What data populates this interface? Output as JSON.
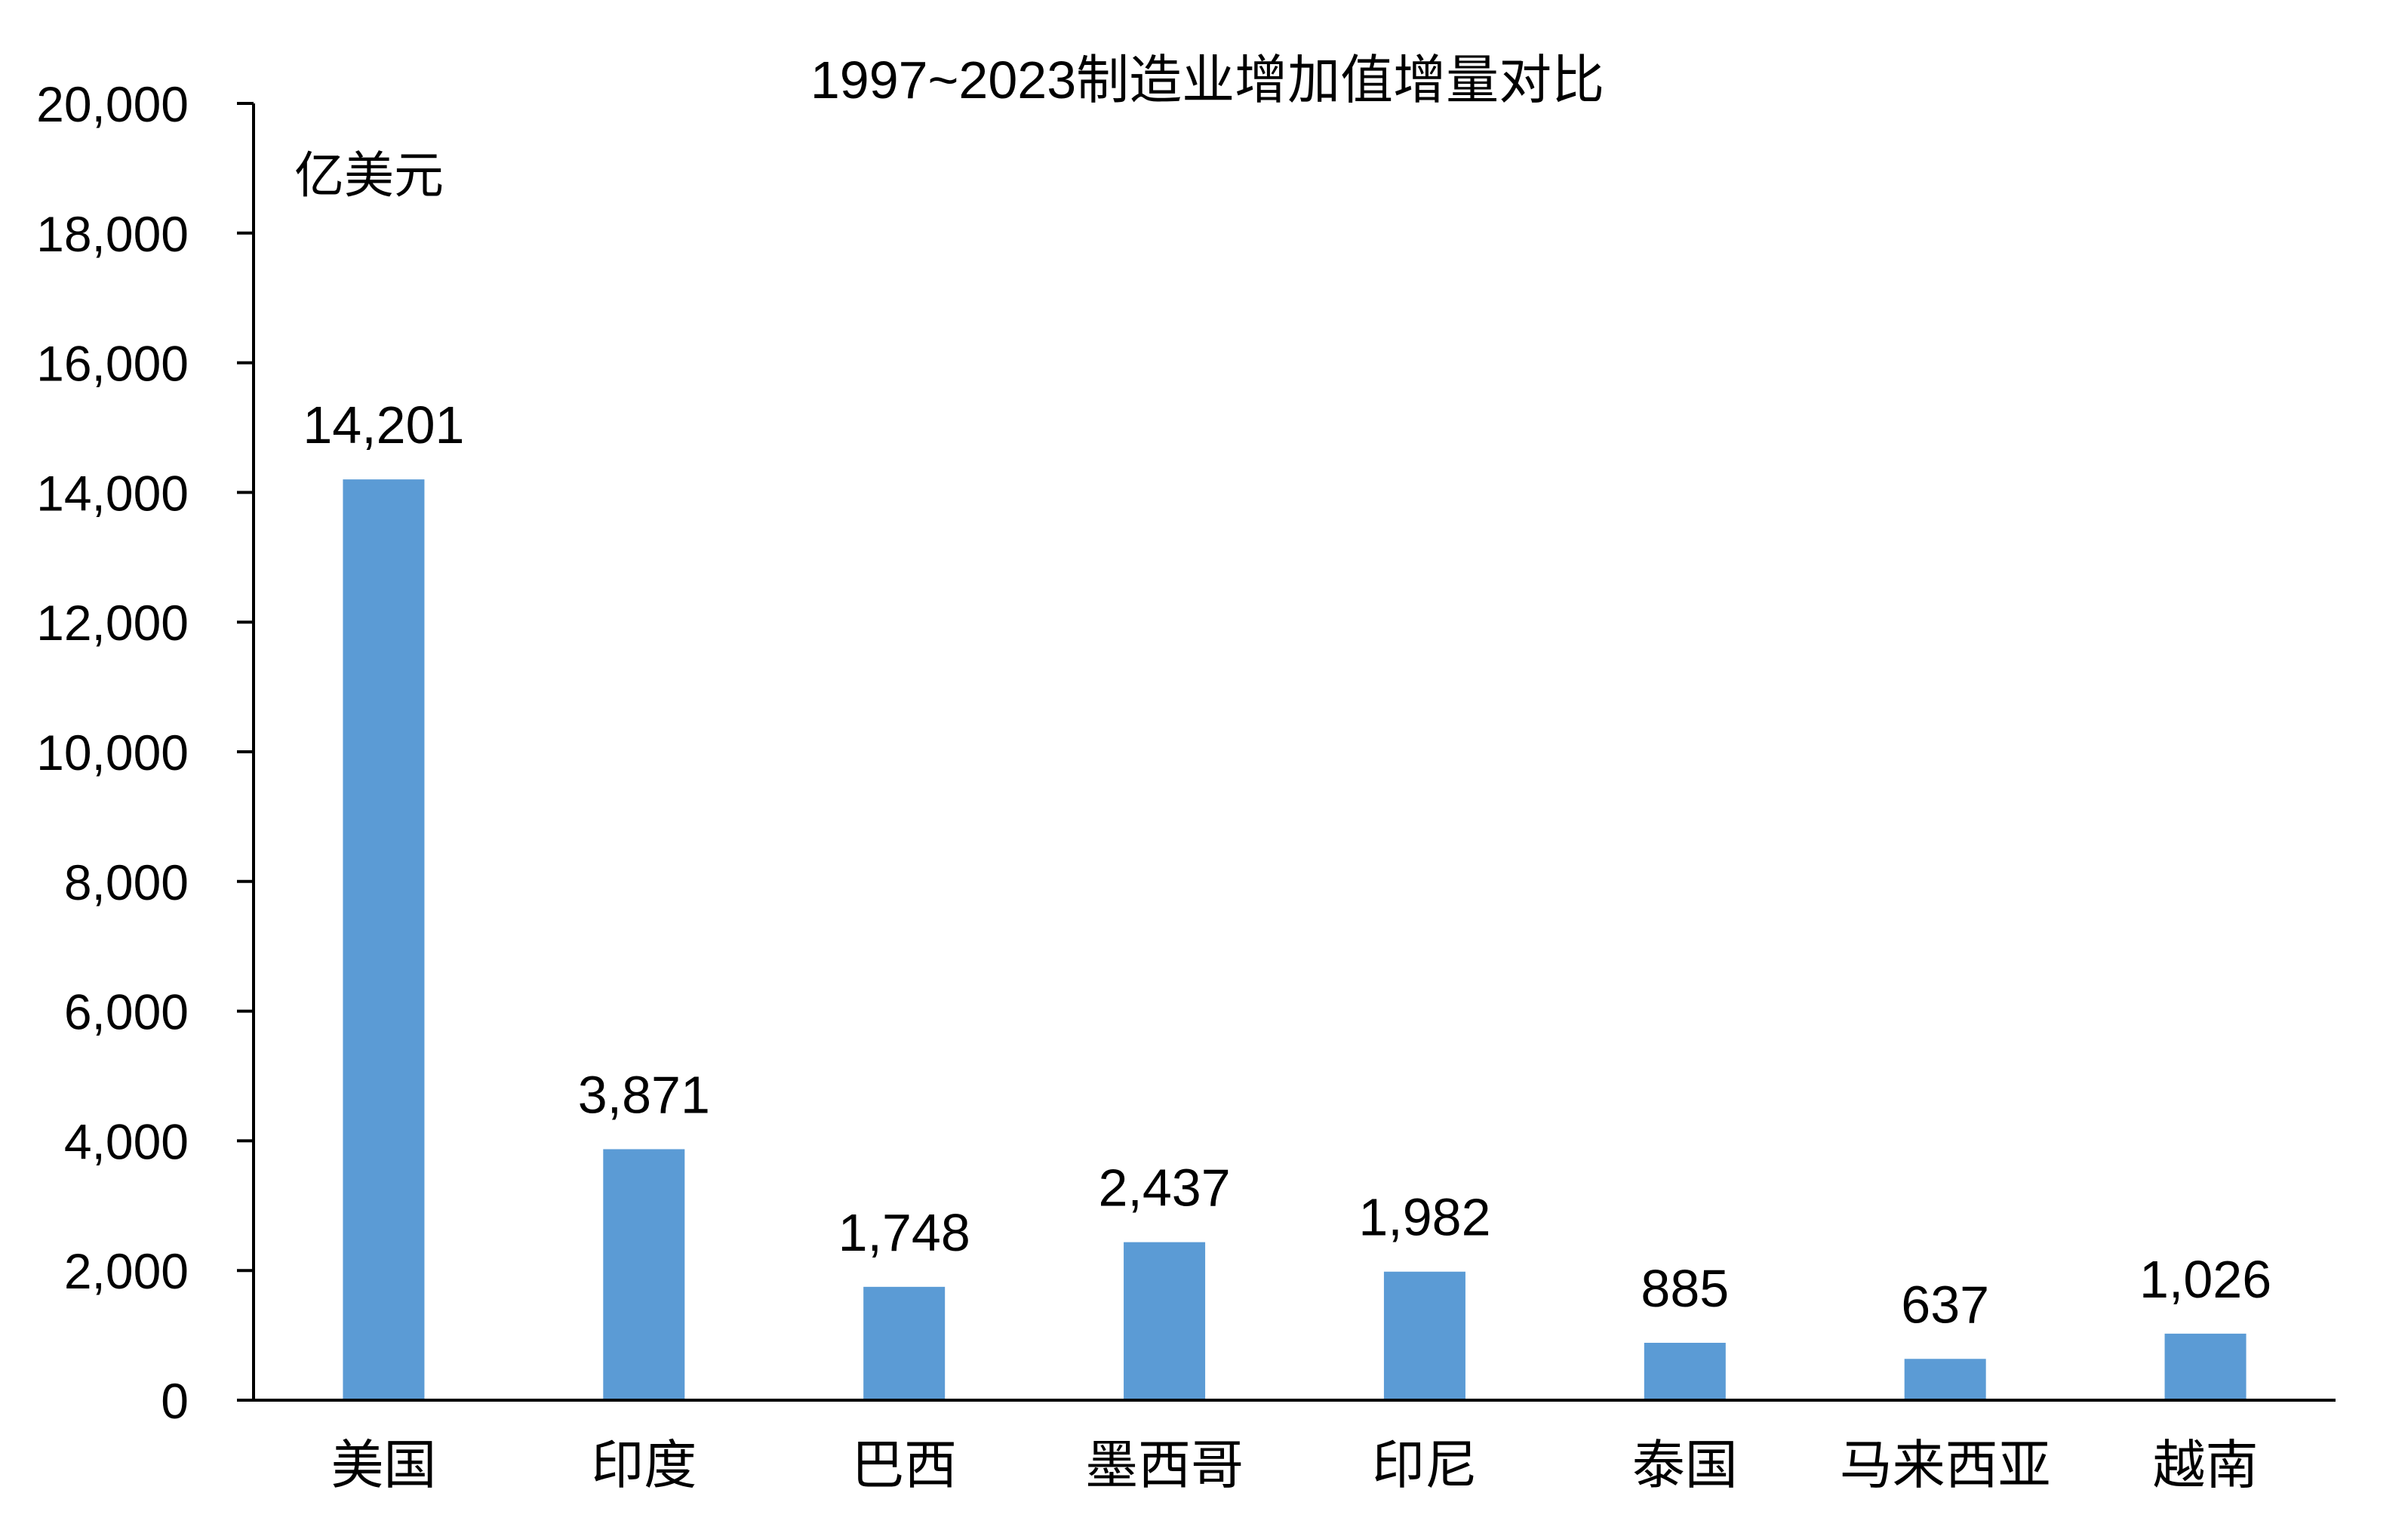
{
  "chart_data": {
    "type": "bar",
    "title": "1997~2023制造业增加值增量对比",
    "unit_label": "亿美元",
    "xlabel": "",
    "ylabel": "",
    "categories": [
      "美国",
      "印度",
      "巴西",
      "墨西哥",
      "印尼",
      "泰国",
      "马来西亚",
      "越南"
    ],
    "values": [
      14201,
      3871,
      1748,
      2437,
      1982,
      885,
      637,
      1026
    ],
    "value_labels": [
      "14,201",
      "3,871",
      "1,748",
      "2,437",
      "1,982",
      "885",
      "637",
      "1,026"
    ],
    "ylim": [
      0,
      20000
    ],
    "yticks": [
      0,
      2000,
      4000,
      6000,
      8000,
      10000,
      12000,
      14000,
      16000,
      18000,
      20000
    ],
    "ytick_labels": [
      "0",
      "2,000",
      "4,000",
      "6,000",
      "8,000",
      "10,000",
      "12,000",
      "14,000",
      "16,000",
      "18,000",
      "20,000"
    ],
    "grid": false,
    "legend": "none",
    "bar_color": "#5B9BD5",
    "axis_color": "#000000"
  }
}
